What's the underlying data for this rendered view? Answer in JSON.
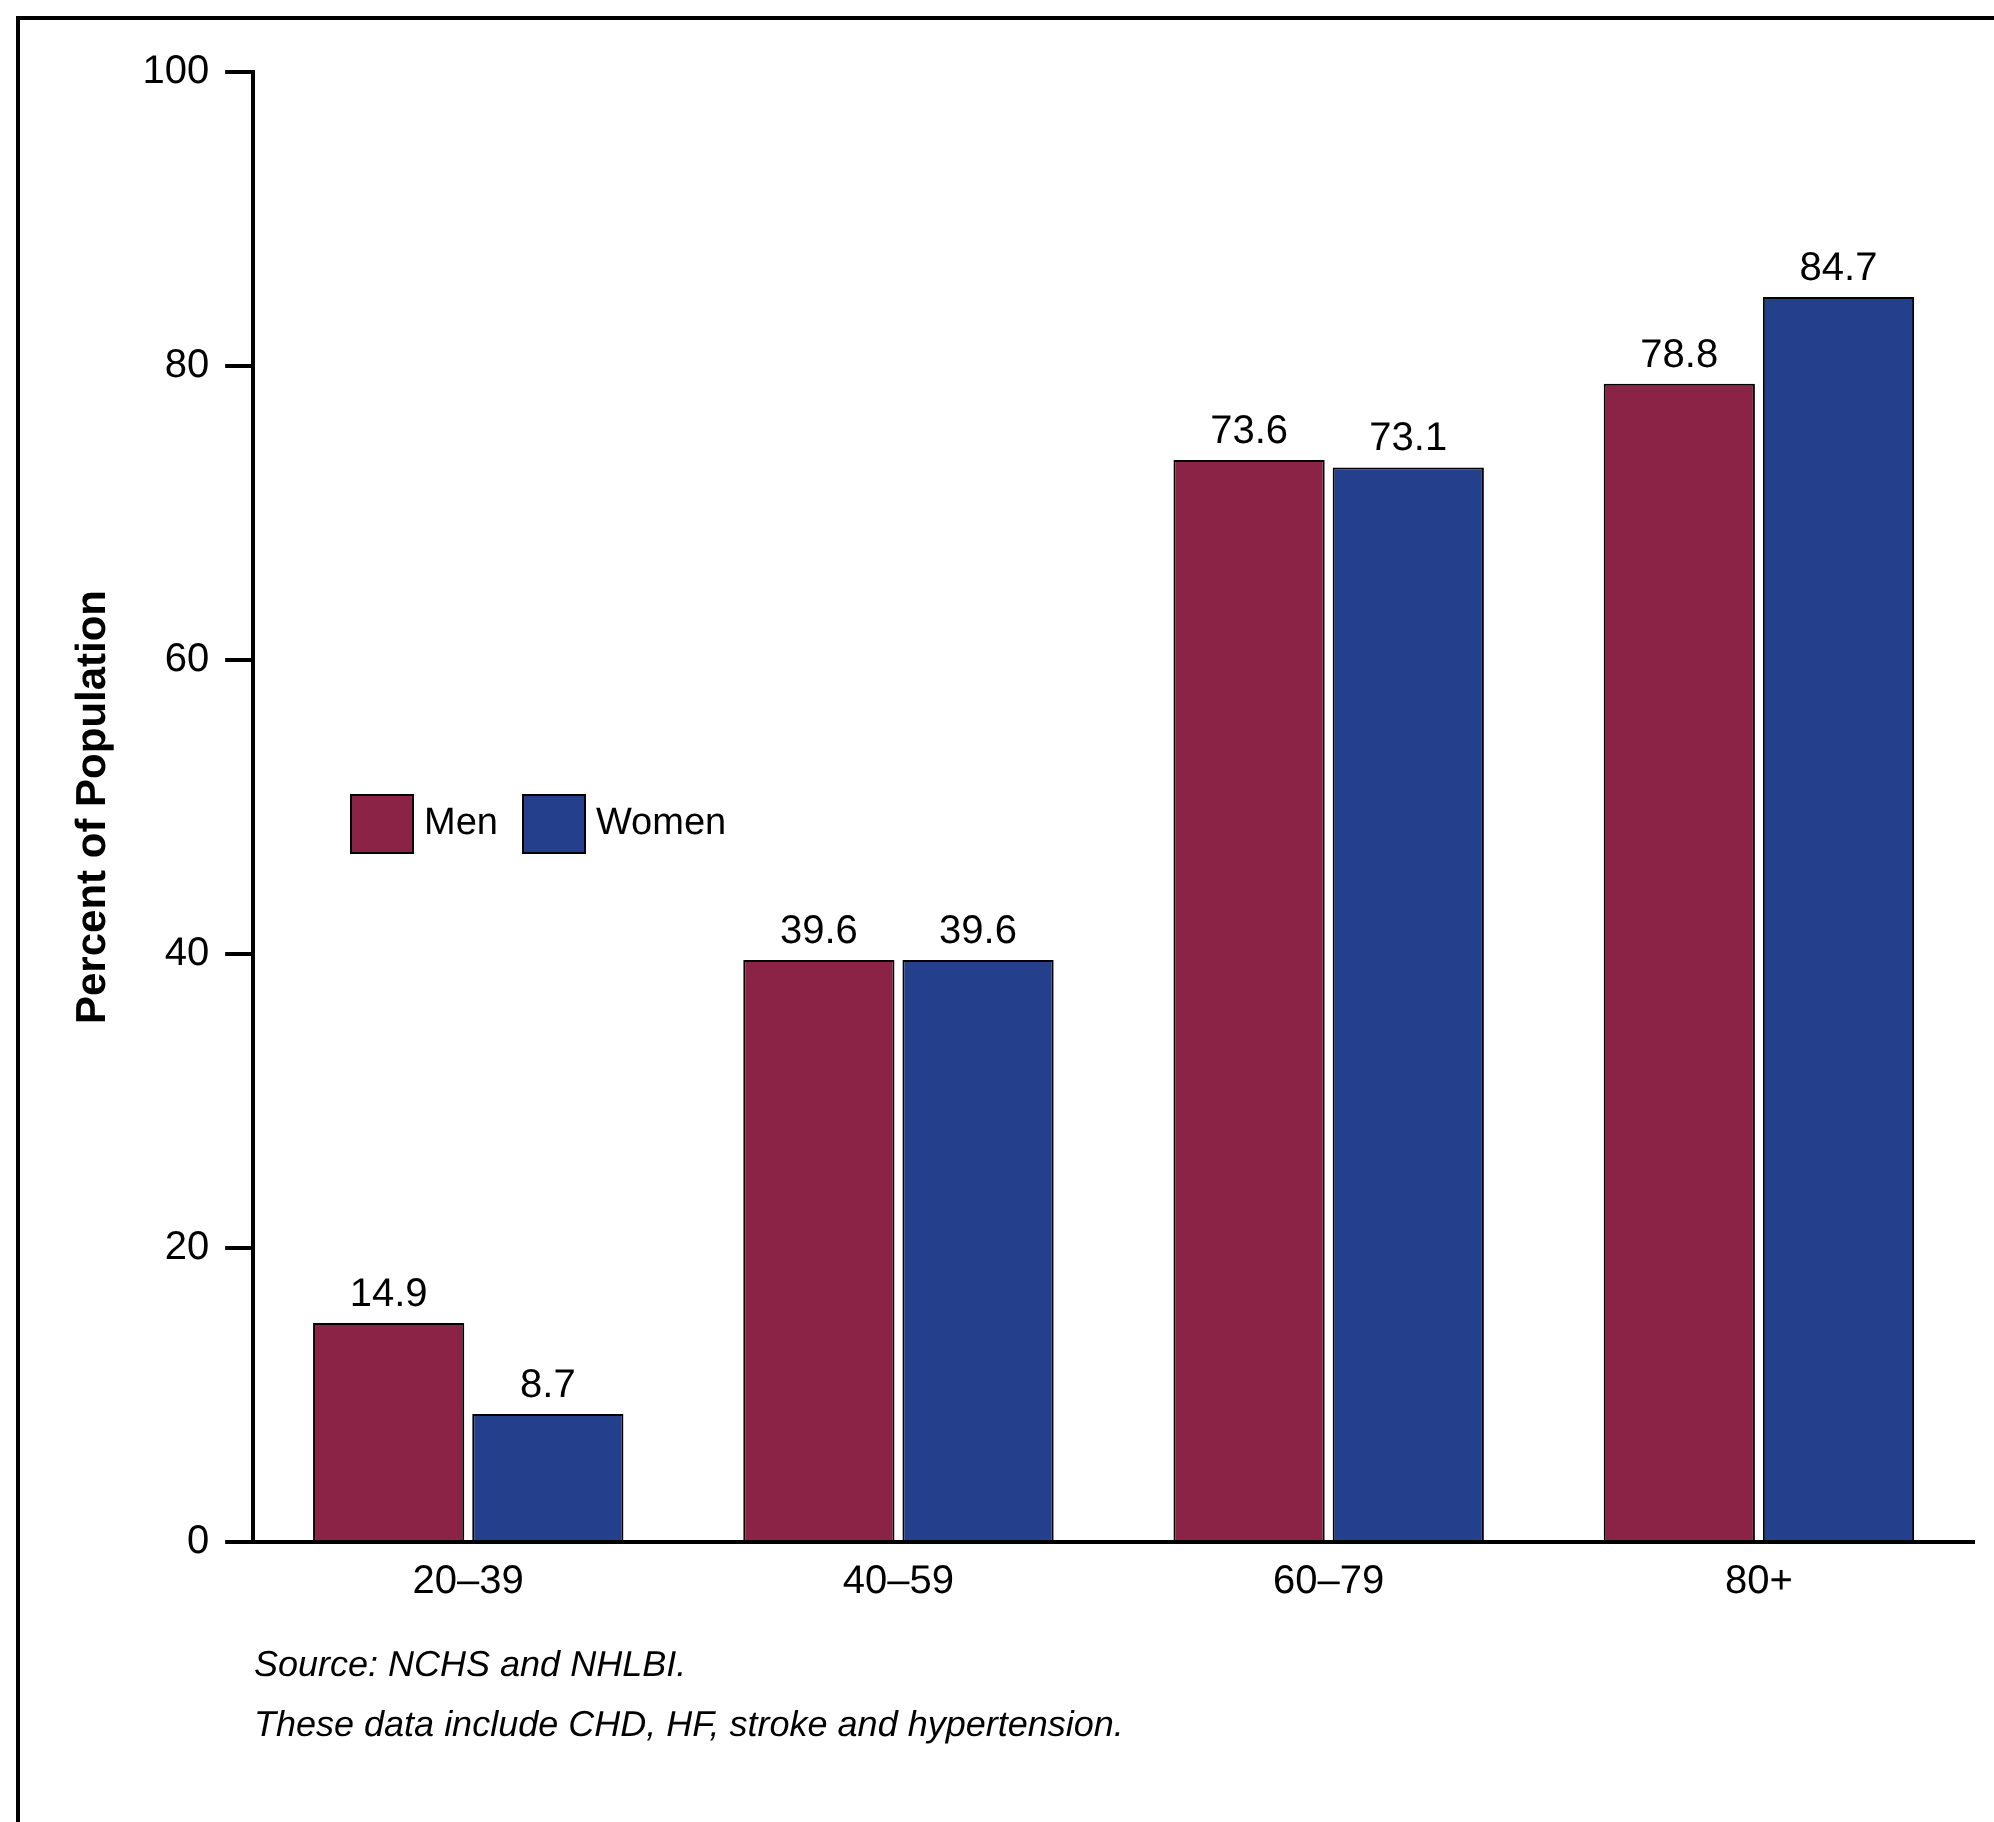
{
  "chart_data": {
    "type": "bar",
    "ylabel": "Percent of Population",
    "categories": [
      "20–39",
      "40–59",
      "60–79",
      "80+"
    ],
    "series": [
      {
        "name": "Men",
        "color": "#8b2346",
        "values": [
          14.9,
          39.6,
          73.6,
          78.8
        ]
      },
      {
        "name": "Women",
        "color": "#243f8c",
        "values": [
          8.7,
          39.6,
          73.1,
          84.7
        ]
      }
    ],
    "ylim": [
      0,
      100
    ],
    "yticks": [
      0,
      20,
      40,
      60,
      80,
      100
    ],
    "grid": false,
    "legend": "left",
    "data_labels": true,
    "annotations": [
      "Source: NCHS and NHLBI.",
      "These data include CHD, HF, stroke and hypertension."
    ]
  }
}
